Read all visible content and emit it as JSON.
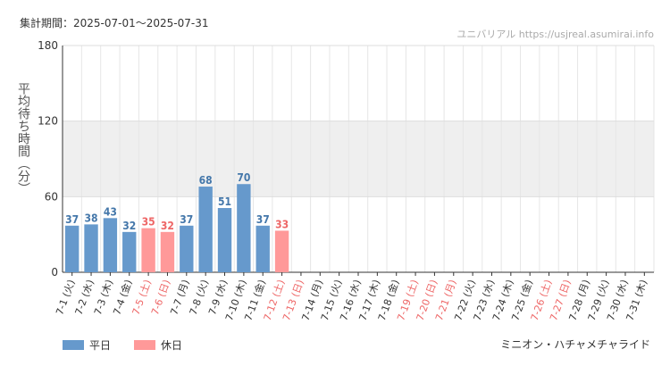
{
  "header": {
    "period_label": "集計期間：2025-07-01～2025-07-31",
    "site": "ユニバリアル  https://usjreal.asumirai.info"
  },
  "ride_name": "ミニオン・ハチャメチャライド",
  "colors": {
    "weekday": "#6699cc",
    "holiday": "#ff9999",
    "weekday_text": "#4477aa",
    "holiday_text": "#ee6666",
    "band": "#efefef"
  },
  "chart_data": {
    "type": "bar",
    "ylabel": "平均待ち時間（分）",
    "ylim": [
      0,
      180
    ],
    "yticks": [
      0,
      60,
      120,
      180
    ],
    "shaded_band": [
      60,
      120
    ],
    "grid": true,
    "legend_position": "bottom-left",
    "legend": [
      {
        "name": "平日",
        "color_key": "weekday"
      },
      {
        "name": "休日",
        "color_key": "holiday"
      }
    ],
    "categories": [
      "7-1 (火)",
      "7-2 (水)",
      "7-3 (木)",
      "7-4 (金)",
      "7-5 (土)",
      "7-6 (日)",
      "7-7 (月)",
      "7-8 (火)",
      "7-9 (水)",
      "7-10 (木)",
      "7-11 (金)",
      "7-12 (土)",
      "7-13 (日)",
      "7-14 (月)",
      "7-15 (火)",
      "7-16 (水)",
      "7-17 (木)",
      "7-18 (金)",
      "7-19 (土)",
      "7-20 (日)",
      "7-21 (月)",
      "7-22 (火)",
      "7-23 (水)",
      "7-24 (木)",
      "7-25 (金)",
      "7-26 (土)",
      "7-27 (日)",
      "7-28 (月)",
      "7-29 (火)",
      "7-30 (水)",
      "7-31 (木)"
    ],
    "day_type": [
      "weekday",
      "weekday",
      "weekday",
      "weekday",
      "holiday",
      "holiday",
      "weekday",
      "weekday",
      "weekday",
      "weekday",
      "weekday",
      "holiday",
      "holiday",
      "weekday",
      "weekday",
      "weekday",
      "weekday",
      "weekday",
      "holiday",
      "holiday",
      "holiday",
      "weekday",
      "weekday",
      "weekday",
      "weekday",
      "holiday",
      "holiday",
      "weekday",
      "weekday",
      "weekday",
      "weekday"
    ],
    "values": [
      37,
      38,
      43,
      32,
      35,
      32,
      37,
      68,
      51,
      70,
      37,
      33,
      null,
      null,
      null,
      null,
      null,
      null,
      null,
      null,
      null,
      null,
      null,
      null,
      null,
      null,
      null,
      null,
      null,
      null,
      null
    ]
  }
}
